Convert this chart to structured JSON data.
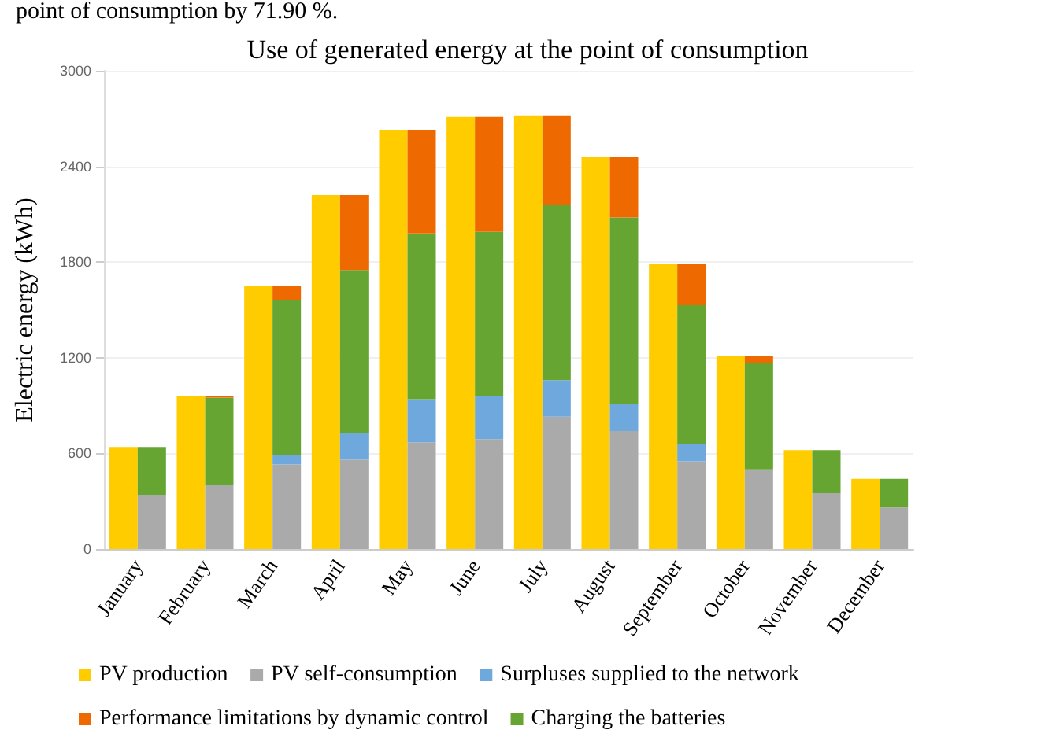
{
  "chart_data": {
    "type": "bar",
    "title": "Use of generated energy at the point of consumption",
    "annotations": [
      "point of consumption by 71.90 %."
    ],
    "ylabel": "Electric energy (kWh)",
    "categories": [
      "January",
      "February",
      "March",
      "April",
      "May",
      "June",
      "July",
      "August",
      "September",
      "October",
      "November",
      "December"
    ],
    "series": [
      {
        "name": "PV production",
        "color": "#ffcc00",
        "values": [
          640,
          960,
          1650,
          2220,
          2630,
          2710,
          2720,
          2460,
          1790,
          1210,
          620,
          440
        ]
      },
      {
        "name": "PV self-consumption",
        "color": "#aaaaaa",
        "base": [
          0,
          0,
          0,
          0,
          0,
          0,
          0,
          0,
          0,
          0,
          0,
          0
        ],
        "values": [
          340,
          400,
          530,
          560,
          670,
          690,
          830,
          740,
          550,
          500,
          350,
          260
        ]
      },
      {
        "name": "Surpluses supplied to the network",
        "color": "#6fa8dc",
        "base": [
          null,
          null,
          530,
          560,
          670,
          690,
          830,
          740,
          550,
          null,
          null,
          null
        ],
        "values": [
          null,
          null,
          60,
          170,
          270,
          270,
          230,
          170,
          110,
          null,
          null,
          null
        ]
      },
      {
        "name": "Charging the batteries",
        "color": "#66a532",
        "base": [
          340,
          400,
          590,
          730,
          940,
          960,
          1060,
          910,
          660,
          500,
          350,
          260
        ],
        "values": [
          300,
          550,
          970,
          1020,
          1040,
          1030,
          1100,
          1170,
          870,
          670,
          270,
          180
        ]
      },
      {
        "name": "Performance limitations by dynamic control",
        "color": "#ee6a00",
        "base": [
          null,
          950,
          1560,
          1750,
          1980,
          1990,
          2160,
          2080,
          1530,
          1170,
          null,
          null
        ],
        "values": [
          null,
          10,
          90,
          470,
          650,
          720,
          560,
          380,
          260,
          40,
          null,
          null
        ]
      }
    ],
    "ylim": [
      0,
      3000
    ],
    "yticks": [
      0,
      600,
      1200,
      1800,
      2400,
      3000
    ],
    "grid": "y",
    "legend": "bottom"
  }
}
